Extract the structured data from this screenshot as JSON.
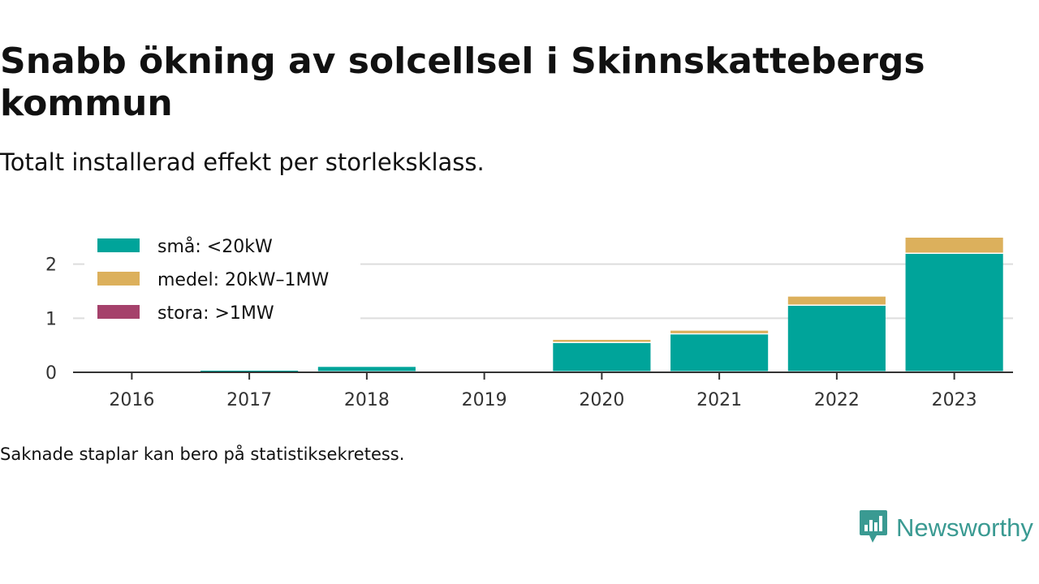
{
  "title": "Snabb ökning av solcellsel i Skinnskattebergs kommun",
  "subtitle": "Totalt installerad effekt per storleksklass.",
  "note": "Saknade staplar kan bero på statistiksekretess.",
  "brand": {
    "name": "Newsworthy",
    "icon": "newsworthy-logo-icon"
  },
  "chart_data": {
    "type": "bar",
    "stacked": true,
    "categories": [
      "2016",
      "2017",
      "2018",
      "2019",
      "2020",
      "2021",
      "2022",
      "2023"
    ],
    "series": [
      {
        "name": "små: <20kW",
        "color": "#00a49a",
        "values": [
          0,
          0.03,
          0.1,
          0,
          0.54,
          0.7,
          1.23,
          2.19
        ]
      },
      {
        "name": "medel: 20kW–1MW",
        "color": "#dcb05c",
        "values": [
          0,
          0,
          0,
          0,
          0.06,
          0.07,
          0.17,
          0.3
        ]
      },
      {
        "name": "stora: >1MW",
        "color": "#a5416b",
        "values": [
          0,
          0,
          0,
          0,
          0,
          0,
          0,
          0
        ]
      }
    ],
    "yticks": [
      0,
      1,
      2
    ],
    "ylim": [
      0,
      2.55
    ],
    "grid": true,
    "legend_position": "top-left"
  }
}
